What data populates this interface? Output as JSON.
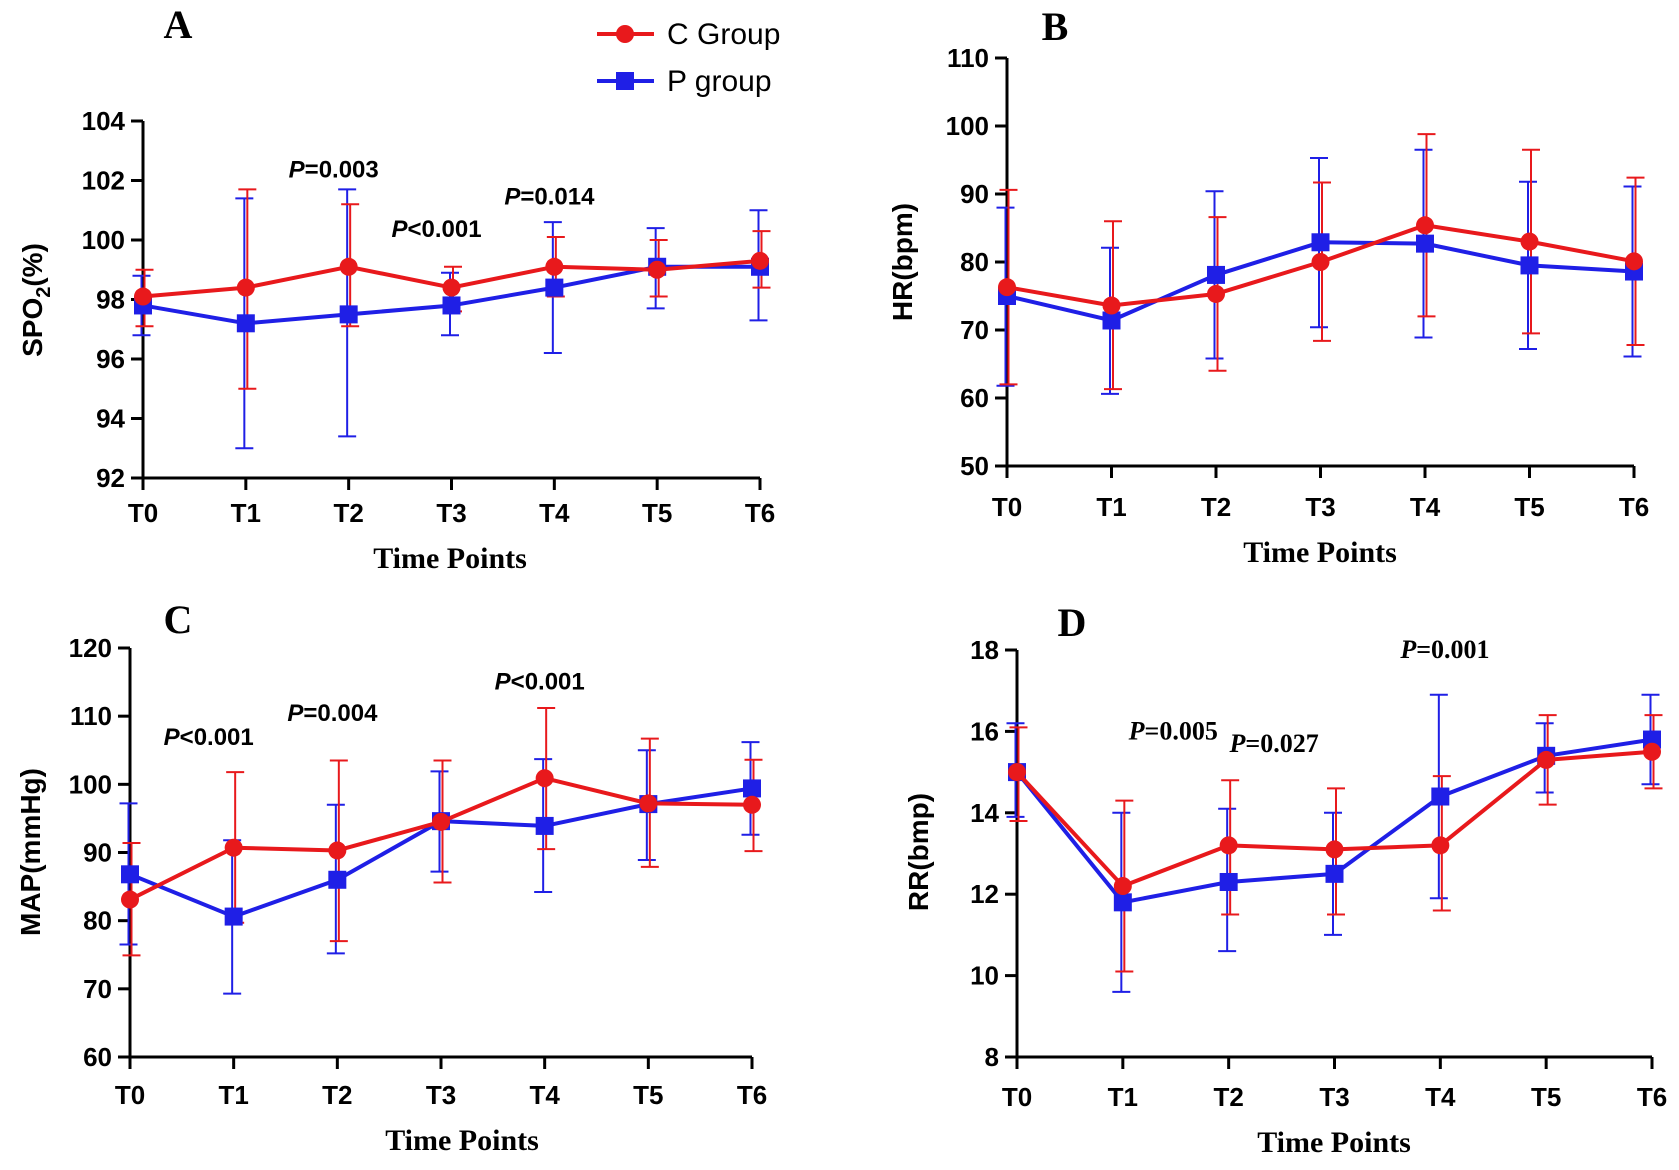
{
  "legend": {
    "items": [
      {
        "label": "C Group",
        "color": "#e8191c",
        "marker": "circle"
      },
      {
        "label": "P group",
        "color": "#1f1fe6",
        "marker": "square"
      }
    ]
  },
  "chart_data": [
    {
      "panel": "A",
      "type": "line",
      "ylabel_main": "SPO",
      "ylabel_sub": "2",
      "ylabel_tail": "(%)",
      "xlabel": "Time Points",
      "categories": [
        "T0",
        "T1",
        "T2",
        "T3",
        "T4",
        "T5",
        "T6"
      ],
      "ylim": [
        92,
        104
      ],
      "yticks": [
        92,
        94,
        96,
        98,
        100,
        102,
        104
      ],
      "series": [
        {
          "name": "C Group",
          "values": [
            98.1,
            98.4,
            99.1,
            98.4,
            99.1,
            99.0,
            99.3
          ],
          "err_up": [
            99.0,
            101.7,
            101.2,
            99.1,
            100.1,
            100.0,
            100.3
          ],
          "err_lo": [
            97.1,
            95.0,
            97.1,
            97.6,
            98.1,
            98.1,
            98.4
          ]
        },
        {
          "name": "P group",
          "values": [
            97.8,
            97.2,
            97.5,
            97.8,
            98.4,
            99.1,
            99.1
          ],
          "err_up": [
            98.8,
            101.4,
            101.7,
            98.9,
            100.6,
            100.4,
            101.0
          ],
          "err_lo": [
            96.8,
            93.0,
            93.4,
            96.8,
            96.2,
            97.7,
            97.3
          ]
        }
      ],
      "annotations": [
        {
          "p": "P",
          "text": "=0.003",
          "cat": 2,
          "y": 102.1
        },
        {
          "p": "P",
          "text": "<0.001",
          "cat": 3,
          "y": 100.1
        },
        {
          "p": "P",
          "text": "=0.014",
          "cat": 4,
          "y": 101.2
        }
      ]
    },
    {
      "panel": "B",
      "type": "line",
      "ylabel_main": "HR(bpm)",
      "xlabel": "Time Points",
      "categories": [
        "T0",
        "T1",
        "T2",
        "T3",
        "T4",
        "T5",
        "T6"
      ],
      "ylim": [
        50,
        110
      ],
      "yticks": [
        50,
        60,
        70,
        80,
        90,
        100,
        110
      ],
      "series": [
        {
          "name": "C Group",
          "values": [
            76.3,
            73.6,
            75.3,
            80.0,
            85.4,
            83.0,
            80.1
          ],
          "err_up": [
            90.6,
            86.0,
            86.6,
            91.7,
            98.8,
            96.5,
            92.4
          ],
          "err_lo": [
            62.0,
            61.3,
            64.0,
            68.4,
            72.0,
            69.5,
            67.8
          ]
        },
        {
          "name": "P group",
          "values": [
            75.0,
            71.4,
            78.1,
            82.9,
            82.7,
            79.5,
            78.6
          ],
          "err_up": [
            88.0,
            82.1,
            90.4,
            95.3,
            96.5,
            91.8,
            91.1
          ],
          "err_lo": [
            61.8,
            60.6,
            65.8,
            70.4,
            68.9,
            67.2,
            66.1
          ]
        }
      ],
      "annotations": []
    },
    {
      "panel": "C",
      "type": "line",
      "ylabel_main": "MAP(mmHg)",
      "xlabel": "Time Points",
      "categories": [
        "T0",
        "T1",
        "T2",
        "T3",
        "T4",
        "T5",
        "T6"
      ],
      "ylim": [
        60,
        120
      ],
      "yticks": [
        60,
        70,
        80,
        90,
        100,
        110,
        120
      ],
      "series": [
        {
          "name": "C Group",
          "values": [
            83.1,
            90.7,
            90.3,
            94.5,
            100.9,
            97.2,
            97.0
          ],
          "err_up": [
            91.4,
            101.8,
            103.5,
            103.5,
            111.2,
            106.7,
            103.6
          ],
          "err_lo": [
            74.9,
            79.7,
            77.0,
            85.6,
            90.5,
            87.9,
            90.2
          ]
        },
        {
          "name": "P group",
          "values": [
            86.8,
            80.6,
            86.0,
            94.6,
            93.9,
            97.1,
            99.4
          ],
          "err_up": [
            97.2,
            91.8,
            97.0,
            101.9,
            103.7,
            105.0,
            106.2
          ],
          "err_lo": [
            76.5,
            69.3,
            75.2,
            87.2,
            84.2,
            88.9,
            92.6
          ]
        }
      ],
      "annotations": [
        {
          "p": "P",
          "text": "<0.001",
          "cat": 1,
          "y": 105.8
        },
        {
          "p": "P",
          "text": "=0.004",
          "cat": 2,
          "y": 109.3
        },
        {
          "p": "P",
          "text": "<0.001",
          "cat": 4,
          "y": 113.9
        }
      ]
    },
    {
      "panel": "D",
      "type": "line",
      "ylabel_main": "RR(bmp)",
      "xlabel": "Time Points",
      "categories": [
        "T0",
        "T1",
        "T2",
        "T3",
        "T4",
        "T5",
        "T6"
      ],
      "ylim": [
        8,
        18
      ],
      "yticks": [
        8,
        10,
        12,
        14,
        16,
        18
      ],
      "series": [
        {
          "name": "C Group",
          "values": [
            15.0,
            12.2,
            13.2,
            13.1,
            13.2,
            15.3,
            15.5
          ],
          "err_up": [
            16.1,
            14.3,
            14.8,
            14.6,
            14.9,
            16.4,
            16.4
          ],
          "err_lo": [
            13.8,
            10.1,
            11.5,
            11.5,
            11.6,
            14.2,
            14.6
          ]
        },
        {
          "name": "P group",
          "values": [
            15.0,
            11.8,
            12.3,
            12.5,
            14.4,
            15.4,
            15.8
          ],
          "err_up": [
            16.2,
            14.0,
            14.1,
            14.0,
            16.9,
            16.2,
            16.9
          ],
          "err_lo": [
            13.9,
            9.6,
            10.6,
            11.0,
            11.9,
            14.5,
            14.7
          ]
        }
      ],
      "annotations": [
        {
          "p": "P",
          "text": "=0.001",
          "cat": 4,
          "y": 17.8
        },
        {
          "p": "P",
          "text": "=0.005",
          "cat": 2,
          "y": 15.8
        },
        {
          "p": "P",
          "text": "=0.027",
          "cat": 3,
          "y": 15.5
        }
      ]
    }
  ]
}
